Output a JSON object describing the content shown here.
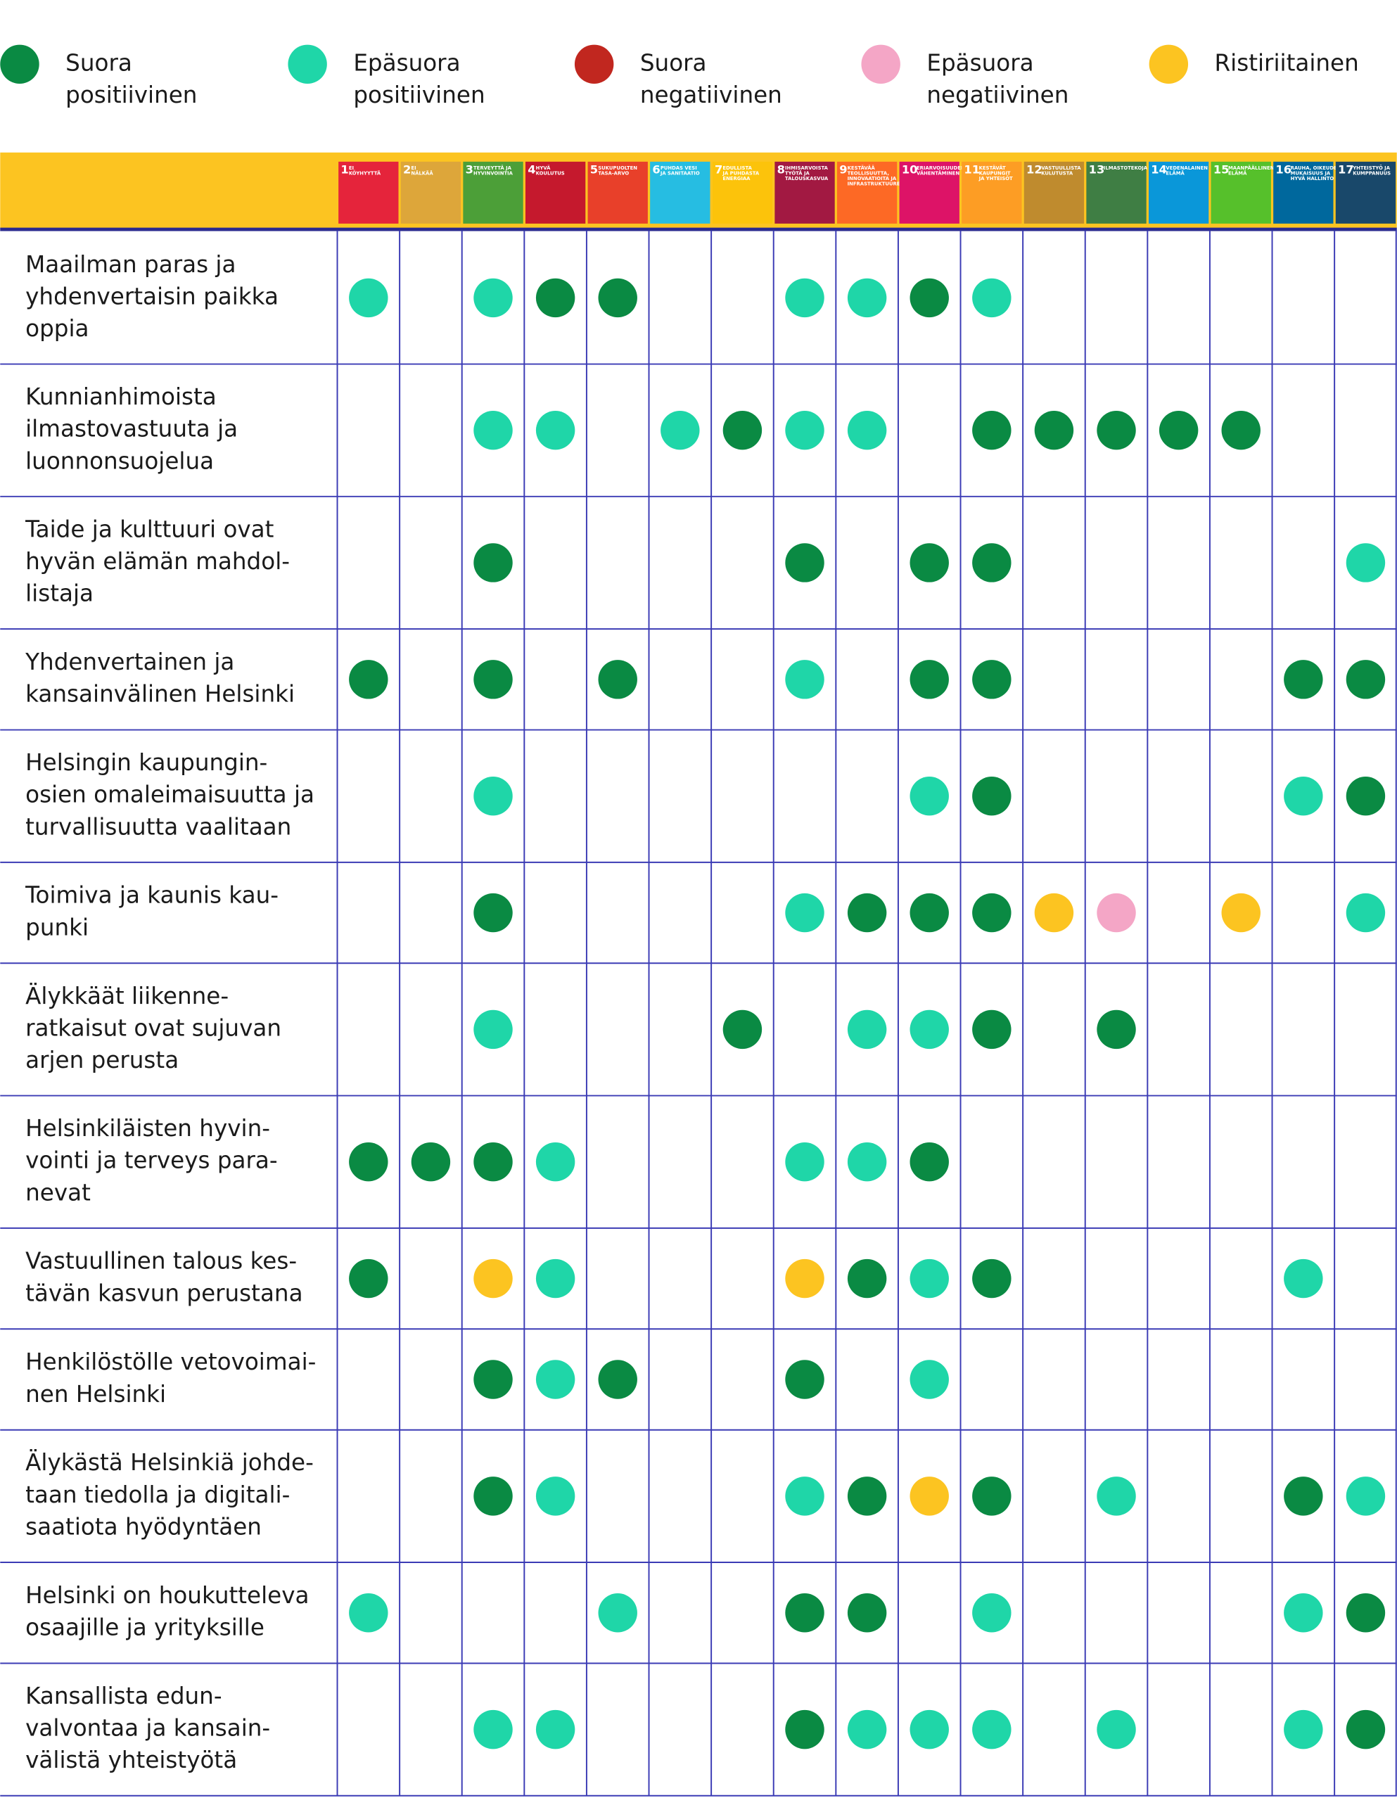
{
  "legend": [
    {
      "lines": [
        "Suora",
        "positiivinen"
      ],
      "color": "#0a8a43"
    },
    {
      "lines": [
        "Epäsuora",
        "positiivinen"
      ],
      "color": "#1fd6a8"
    },
    {
      "lines": [
        "Suora",
        "negatiivinen"
      ],
      "color": "#c1271f"
    },
    {
      "lines": [
        "Epäsuora",
        "negatiivinen"
      ],
      "color": "#f4a6c6"
    },
    {
      "lines": [
        "Ristiriitainen"
      ],
      "color": "#fcc421"
    }
  ],
  "goals": [
    {
      "number": 1,
      "label": [
        "EI",
        "KÖYHYYTTÄ"
      ],
      "color": "#e5243b"
    },
    {
      "number": 2,
      "label": [
        "EI",
        "NÄLKÄÄ"
      ],
      "color": "#dda63a"
    },
    {
      "number": 3,
      "label": [
        "TERVEYTTÄ JA",
        "HYVINVOINTIA"
      ],
      "color": "#4c9f38"
    },
    {
      "number": 4,
      "label": [
        "HYVÄ",
        "KOULUTUS"
      ],
      "color": "#c5192d"
    },
    {
      "number": 5,
      "label": [
        "SUKUPUOLTEN",
        "TASA-ARVO"
      ],
      "color": "#e8402a"
    },
    {
      "number": 6,
      "label": [
        "PUHDAS VESI",
        "JA SANITAATIO"
      ],
      "color": "#26bde2"
    },
    {
      "number": 7,
      "label": [
        "EDULLISTA",
        "JA PUHDASTA",
        "ENERGIAA"
      ],
      "color": "#fcc30b"
    },
    {
      "number": 8,
      "label": [
        "IHMISARVOISTA",
        "TYÖTÄ JA",
        "TALOUSKASVUA"
      ],
      "color": "#a21942"
    },
    {
      "number": 9,
      "label": [
        "KESTÄVÄÄ",
        "TEOLLISUUTTA,",
        "INNOVAATIOITA JA",
        "INFRASTRUKTUUREJA"
      ],
      "color": "#fd6925"
    },
    {
      "number": 10,
      "label": [
        "ERIARVOISUUDEN",
        "VÄHENTÄMINEN"
      ],
      "color": "#dd1367"
    },
    {
      "number": 11,
      "label": [
        "KESTÄVÄT",
        "KAUPUNGIT",
        "JA YHTEISÖT"
      ],
      "color": "#fd9d24"
    },
    {
      "number": 12,
      "label": [
        "VASTUULLISTA",
        "KULUTUSTA"
      ],
      "color": "#bf8b2e"
    },
    {
      "number": 13,
      "label": [
        "ILMASTOTEKOJA"
      ],
      "color": "#3f7e44"
    },
    {
      "number": 14,
      "label": [
        "VEDENALAINEN",
        "ELÄMÄ"
      ],
      "color": "#0a97d9"
    },
    {
      "number": 15,
      "label": [
        "MAANPÄÄLLINEN",
        "ELÄMÄ"
      ],
      "color": "#56c02b"
    },
    {
      "number": 16,
      "label": [
        "RAUHA, OIKEUDEN-",
        "MUKAISUUS JA",
        "HYVÄ HALLINTO"
      ],
      "color": "#00689d"
    },
    {
      "number": 17,
      "label": [
        "YHTEISTYÖ JA",
        "KUMPPANUUS"
      ],
      "color": "#19486a"
    }
  ],
  "rows": [
    {
      "lines": [
        "Maailman paras ja",
        "yhdenvertaisin paikka",
        "oppia"
      ],
      "cells": [
        1,
        null,
        1,
        0,
        0,
        null,
        null,
        1,
        1,
        0,
        1,
        null,
        null,
        null,
        null,
        null,
        null
      ]
    },
    {
      "lines": [
        "Kunnianhimoista",
        "ilmastovastuuta ja",
        "luonnonsuojelua"
      ],
      "cells": [
        null,
        null,
        1,
        1,
        null,
        1,
        0,
        1,
        1,
        null,
        0,
        0,
        0,
        0,
        0,
        null,
        null
      ]
    },
    {
      "lines": [
        "Taide ja kulttuuri ovat",
        "hyvän elämän mahdol-",
        "listaja"
      ],
      "cells": [
        null,
        null,
        0,
        null,
        null,
        null,
        null,
        0,
        null,
        0,
        0,
        null,
        null,
        null,
        null,
        null,
        1
      ]
    },
    {
      "lines": [
        "Yhdenvertainen ja",
        "kansainvälinen Helsinki"
      ],
      "cells": [
        0,
        null,
        0,
        null,
        0,
        null,
        null,
        1,
        null,
        0,
        0,
        null,
        null,
        null,
        null,
        0,
        0
      ]
    },
    {
      "lines": [
        "Helsingin kaupungin-",
        "osien omaleimaisuutta ja",
        "turvallisuutta vaalitaan"
      ],
      "cells": [
        null,
        null,
        1,
        null,
        null,
        null,
        null,
        null,
        null,
        1,
        0,
        null,
        null,
        null,
        null,
        1,
        0
      ]
    },
    {
      "lines": [
        "Toimiva ja kaunis kau-",
        "punki"
      ],
      "cells": [
        null,
        null,
        0,
        null,
        null,
        null,
        null,
        1,
        0,
        0,
        0,
        4,
        3,
        null,
        4,
        null,
        1
      ]
    },
    {
      "lines": [
        "Älykkäät liikenne-",
        "ratkaisut ovat sujuvan",
        "arjen perusta"
      ],
      "cells": [
        null,
        null,
        1,
        null,
        null,
        null,
        0,
        null,
        1,
        1,
        0,
        null,
        0,
        null,
        null,
        null,
        null
      ]
    },
    {
      "lines": [
        "Helsinkiläisten hyvin-",
        "vointi ja terveys para-",
        "nevat"
      ],
      "cells": [
        0,
        0,
        0,
        1,
        null,
        null,
        null,
        1,
        1,
        0,
        null,
        null,
        null,
        null,
        null,
        null,
        null
      ]
    },
    {
      "lines": [
        "Vastuullinen talous kes-",
        "tävän kasvun perustana"
      ],
      "cells": [
        0,
        null,
        4,
        1,
        null,
        null,
        null,
        4,
        0,
        1,
        0,
        null,
        null,
        null,
        null,
        1,
        null
      ]
    },
    {
      "lines": [
        "Henkilöstölle vetovoimai-",
        "nen Helsinki"
      ],
      "cells": [
        null,
        null,
        0,
        1,
        0,
        null,
        null,
        0,
        null,
        1,
        null,
        null,
        null,
        null,
        null,
        null,
        null
      ]
    },
    {
      "lines": [
        "Älykästä Helsinkiä johde-",
        "taan tiedolla ja digitali-",
        "saatiota hyödyntäen"
      ],
      "cells": [
        null,
        null,
        0,
        1,
        null,
        null,
        null,
        1,
        0,
        4,
        0,
        null,
        1,
        null,
        null,
        0,
        1
      ]
    },
    {
      "lines": [
        "Helsinki on houkutteleva",
        "osaajille ja yrityksille"
      ],
      "cells": [
        1,
        null,
        null,
        null,
        1,
        null,
        null,
        0,
        0,
        null,
        1,
        null,
        null,
        null,
        null,
        1,
        0
      ]
    },
    {
      "lines": [
        "Kansallista edun-",
        "valvontaa ja kansain-",
        "välistä yhteistyötä"
      ],
      "cells": [
        null,
        null,
        1,
        1,
        null,
        null,
        null,
        0,
        1,
        1,
        1,
        null,
        1,
        null,
        null,
        1,
        0
      ]
    }
  ]
}
